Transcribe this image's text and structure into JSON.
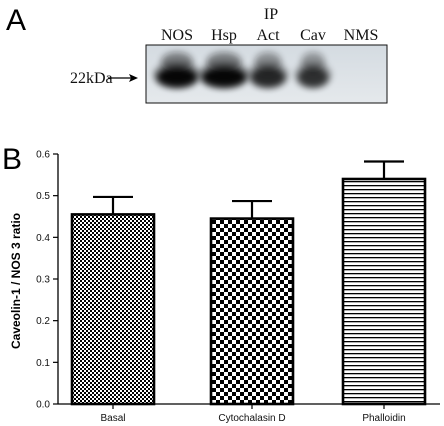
{
  "panel_a": {
    "letter": "A",
    "ip_label": "IP",
    "lanes": [
      "NOS",
      "Hsp",
      "Act",
      "Cav",
      "NMS"
    ],
    "marker_label": "22kDa",
    "band_intensity": [
      1.0,
      1.0,
      0.8,
      0.75,
      0.0
    ]
  },
  "panel_b": {
    "letter": "B"
  },
  "chart_data": {
    "type": "bar",
    "categories": [
      "Basal",
      "Cytochalasin D",
      "Phalloidin"
    ],
    "series": [
      {
        "values": [
          0.455,
          0.445,
          0.54
        ],
        "errors": [
          0.042,
          0.042,
          0.042
        ],
        "fills": [
          "checker-fine",
          "checker-coarse",
          "horizontal-lines"
        ]
      }
    ],
    "title": "",
    "xlabel": "",
    "ylabel": "Caveolin-1 / NOS 3 ratio",
    "ylim": [
      0.0,
      0.6
    ],
    "yticks": [
      0.0,
      0.1,
      0.2,
      0.3,
      0.4,
      0.5,
      0.6
    ],
    "ytick_labels": [
      "0.0",
      "0.1",
      "0.2",
      "0.3",
      "0.4",
      "0.5",
      "0.6"
    ],
    "grid": false,
    "legend": "none",
    "colors": {
      "ink": "#000000",
      "background": "#ffffff"
    }
  }
}
